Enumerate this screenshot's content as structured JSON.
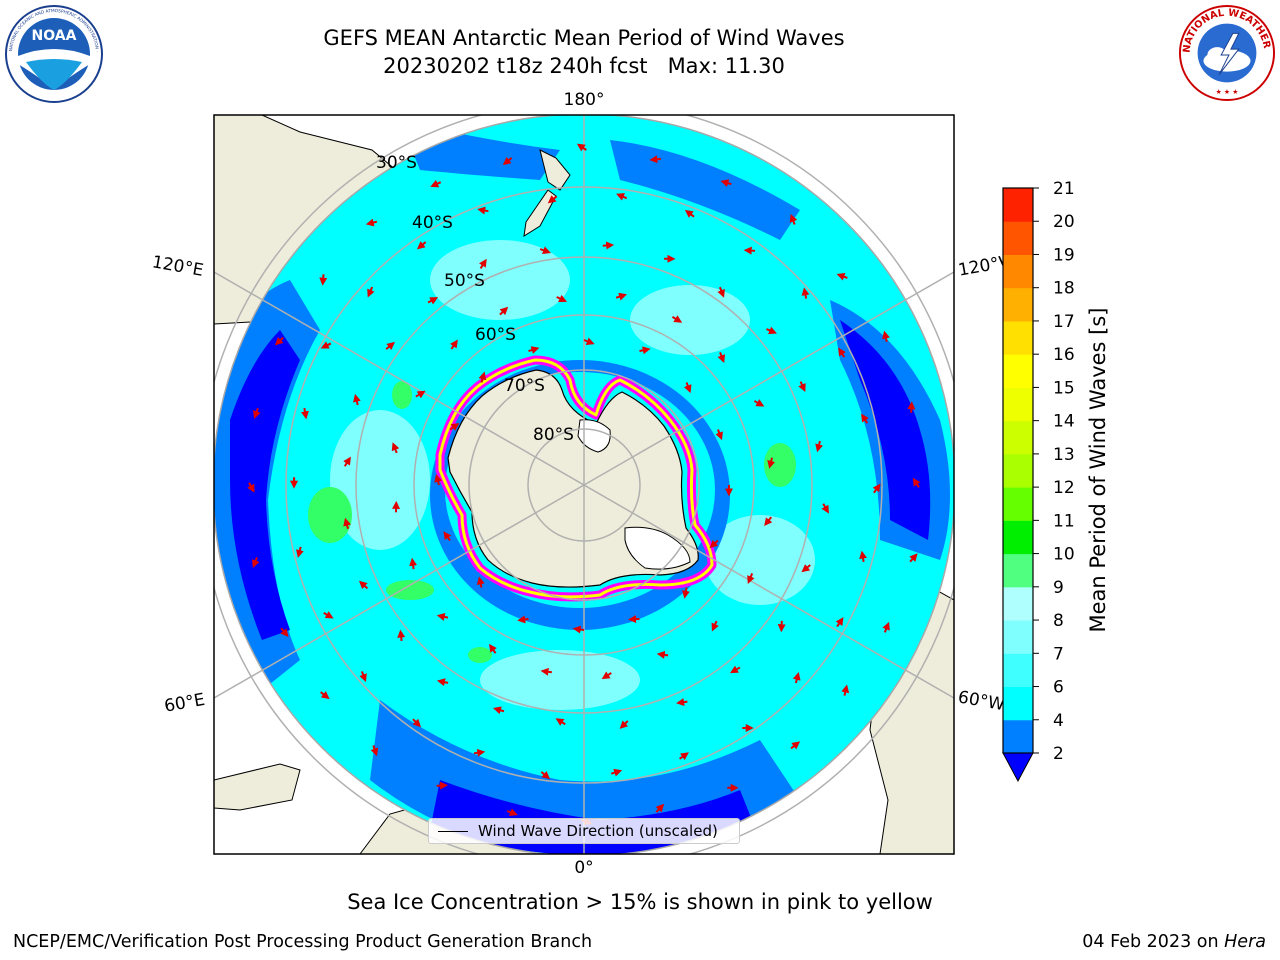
{
  "title": {
    "line1": "GEFS MEAN Antarctic Mean Period of Wind Waves",
    "line2": "20230202 t18z 240h fcst   Max: 11.30"
  },
  "logos": {
    "left": {
      "icon": "noaa-logo",
      "text": "NOAA",
      "ring_text": "NATIONAL OCEANIC AND ATMOSPHERIC ADMINISTRATION · U.S. DEPARTMENT OF COMMERCE"
    },
    "right": {
      "icon": "nws-logo",
      "ring_text": "NATIONAL WEATHER SERVICE"
    }
  },
  "map": {
    "projection": "south-polar-stereographic",
    "longitude_labels": {
      "top": "180°",
      "bottom": "0°",
      "left_upper": "120°E",
      "left_lower": "60°E",
      "right_upper": "120°W",
      "right_lower": "60°W"
    },
    "latitude_labels": [
      "30°S",
      "40°S",
      "50°S",
      "60°S",
      "70°S",
      "80°S"
    ],
    "legend": {
      "label": "Wind Wave Direction (unscaled)"
    },
    "colors": {
      "land": "#eeecda",
      "ocean_light": "#00ffff",
      "ocean_mid": "#0080ff",
      "ocean_dark": "#0000ff",
      "waves_pale": "#80ffff",
      "green": "#33ff66",
      "arrow": "#e00000",
      "ice_edge": "#ff00ff",
      "grid": "#b0b0b0"
    }
  },
  "colorbar": {
    "label": "Mean Period of Wind Waves [s]",
    "ticks": [
      "2",
      "4",
      "6",
      "7",
      "8",
      "9",
      "10",
      "11",
      "12",
      "13",
      "14",
      "15",
      "16",
      "17",
      "18",
      "19",
      "20",
      "21"
    ],
    "colors": [
      "#0080ff",
      "#00ffff",
      "#40ffff",
      "#80ffff",
      "#b0ffff",
      "#50ff80",
      "#00ee00",
      "#66ff00",
      "#aaff00",
      "#ccff00",
      "#eeff00",
      "#ffff00",
      "#ffe000",
      "#ffb000",
      "#ff8800",
      "#ff5500",
      "#ff2200",
      "#ff0000"
    ],
    "extend_color": "#0000ff"
  },
  "caption": "Sea Ice Concentration > 15% is shown in pink to yellow",
  "footer": {
    "left": "NCEP/EMC/Verification Post Processing Product Generation Branch",
    "right_prefix": "04 Feb 2023 on ",
    "right_italic": "Hera"
  }
}
